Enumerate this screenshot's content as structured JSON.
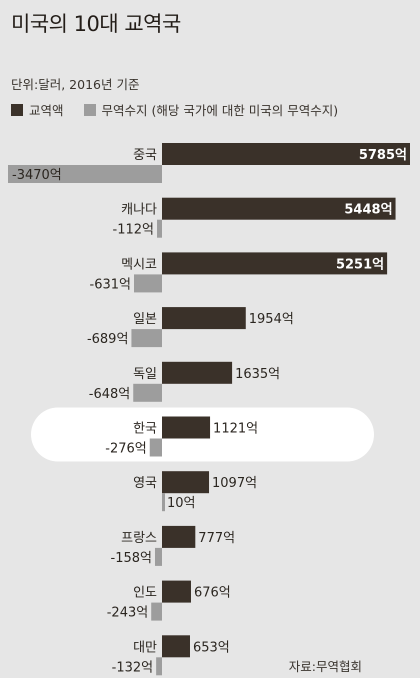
{
  "title": "미국의 10대 교역국",
  "unit_text": "단위:달러, 2016년 기준",
  "legend": [
    {
      "label": "교역액",
      "color": "#3a3129"
    },
    {
      "label": "무역수지 (해당 국가에 대한 미국의 무역수지)",
      "color": "#9d9d9d"
    }
  ],
  "source_text": "자료:무역협회",
  "highlight_color": "#ffffff",
  "chart_data": {
    "type": "bar",
    "categories": [
      "중국",
      "캐나다",
      "멕시코",
      "일본",
      "독일",
      "한국",
      "영국",
      "프랑스",
      "인도",
      "대만"
    ],
    "series": [
      {
        "name": "교역액",
        "values": [
          5785,
          5448,
          5251,
          1954,
          1635,
          1121,
          1097,
          777,
          676,
          653
        ]
      },
      {
        "name": "무역수지 (해당 국가에 대한 미국의 무역수지)",
        "values": [
          -3470,
          -112,
          -631,
          -689,
          -648,
          -276,
          10,
          -158,
          -243,
          -132
        ]
      }
    ],
    "trade_labels": [
      "5785억",
      "5448억",
      "5251억",
      "1954억",
      "1635억",
      "1121억",
      "1097억",
      "777억",
      "676억",
      "653억"
    ],
    "balance_labels": [
      "-3470억",
      "-112억",
      "-631억",
      "-689억",
      "-648억",
      "-276억",
      "10억",
      "-158억",
      "-243억",
      "-132억"
    ],
    "highlight_category": "한국",
    "unit": "억 달러"
  }
}
